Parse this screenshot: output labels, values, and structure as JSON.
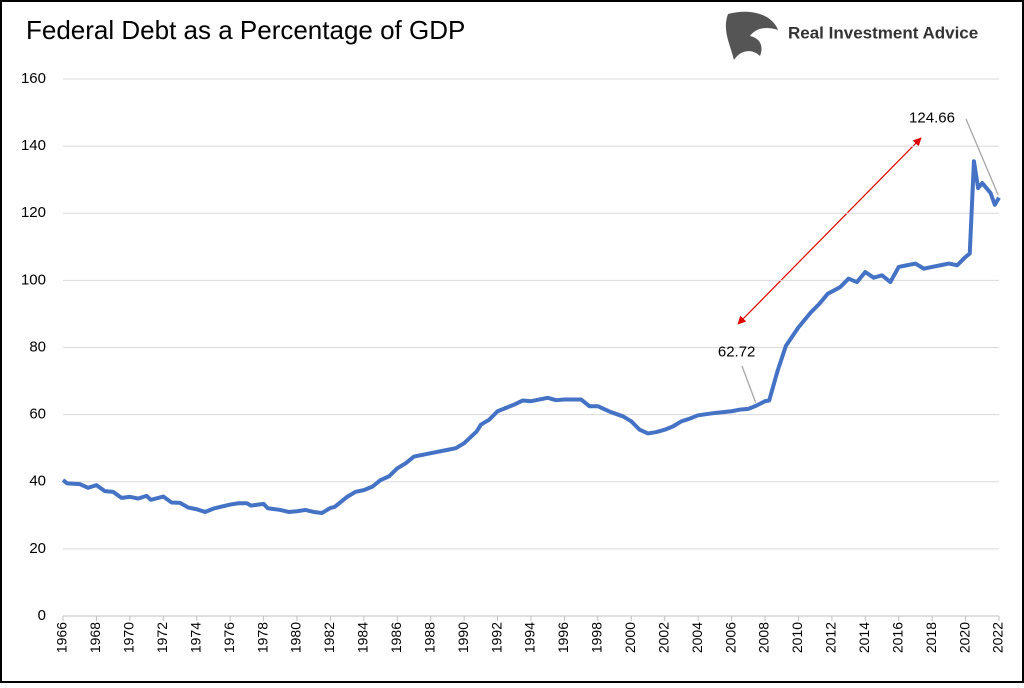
{
  "chart_data": {
    "type": "line",
    "title": "Federal Debt as a Percentage of GDP",
    "source": "Real Investment Advice",
    "x": [
      1966,
      1966.25,
      1967,
      1967.5,
      1968,
      1968.5,
      1969,
      1969.5,
      1970,
      1970.5,
      1971,
      1971.25,
      1972,
      1972.5,
      1973,
      1973.5,
      1974,
      1974.5,
      1975,
      1975.5,
      1976,
      1976.5,
      1977,
      1977.25,
      1978,
      1978.25,
      1979,
      1979.5,
      1980,
      1980.5,
      1981,
      1981.5,
      1982,
      1982.25,
      1983,
      1983.5,
      1984,
      1984.5,
      1985,
      1985.5,
      1986,
      1986.5,
      1987,
      1988,
      1989,
      1989.5,
      1990,
      1990.75,
      1991,
      1991.5,
      1992,
      1993,
      1993.5,
      1994,
      1995,
      1995.5,
      1996,
      1997,
      1997.5,
      1998,
      1998.75,
      1999.5,
      2000,
      2000.5,
      2001,
      2001.5,
      2002,
      2002.5,
      2003,
      2003.5,
      2004,
      2005,
      2006,
      2006.5,
      2007,
      2007.5,
      2008,
      2008.25,
      2008.75,
      2009.25,
      2010,
      2010.75,
      2011.25,
      2011.75,
      2012.5,
      2013,
      2013.5,
      2014,
      2014.5,
      2015,
      2015.5,
      2016,
      2016.5,
      2017,
      2017.5,
      2018,
      2018.5,
      2019,
      2019.5,
      2020,
      2020.25,
      2020.5,
      2020.75,
      2021,
      2021.5,
      2021.75,
      2022
    ],
    "values": [
      40.5,
      39.5,
      39.3,
      38.2,
      39,
      37.2,
      37,
      35.2,
      35.5,
      35,
      35.8,
      34.6,
      35.6,
      33.8,
      33.7,
      32.3,
      31.8,
      31,
      32,
      32.6,
      33.2,
      33.6,
      33.6,
      32.9,
      33.4,
      32.1,
      31.6,
      31,
      31.2,
      31.6,
      31,
      30.7,
      32.2,
      32.5,
      35.5,
      37,
      37.5,
      38.5,
      40.5,
      41.6,
      44,
      45.5,
      47.5,
      48.5,
      49.5,
      50,
      51.5,
      55,
      57,
      58.5,
      61,
      63,
      64.2,
      64,
      65,
      64.3,
      64.5,
      64.5,
      62.5,
      62.5,
      60.8,
      59.5,
      58,
      55.5,
      54.4,
      54.8,
      55.5,
      56.5,
      58,
      58.8,
      59.8,
      60.5,
      61,
      61.5,
      61.7,
      62.72,
      64,
      64.2,
      73,
      80.5,
      86,
      90.5,
      93,
      96,
      98,
      100.5,
      99.5,
      102.5,
      100.8,
      101.5,
      99.5,
      104,
      104.5,
      105,
      103.5,
      104,
      104.5,
      105,
      104.5,
      107,
      108,
      135.5,
      127.5,
      129,
      126,
      122.5,
      124.66
    ],
    "color": "#4472c4",
    "xlim": [
      1966,
      2022
    ],
    "xticks": [
      1966,
      1968,
      1970,
      1972,
      1974,
      1976,
      1978,
      1980,
      1982,
      1984,
      1986,
      1988,
      1990,
      1992,
      1994,
      1996,
      1998,
      2000,
      2002,
      2004,
      2006,
      2008,
      2010,
      2012,
      2014,
      2016,
      2018,
      2020,
      2022
    ],
    "ylim": [
      0,
      160
    ],
    "yticks": [
      0,
      20,
      40,
      60,
      80,
      100,
      120,
      140,
      160
    ],
    "grid": true,
    "annotations": [
      {
        "text": "124.66",
        "x": 2022,
        "y": 124.66
      },
      {
        "text": "62.72",
        "x": 2007.5,
        "y": 62.72
      }
    ]
  }
}
